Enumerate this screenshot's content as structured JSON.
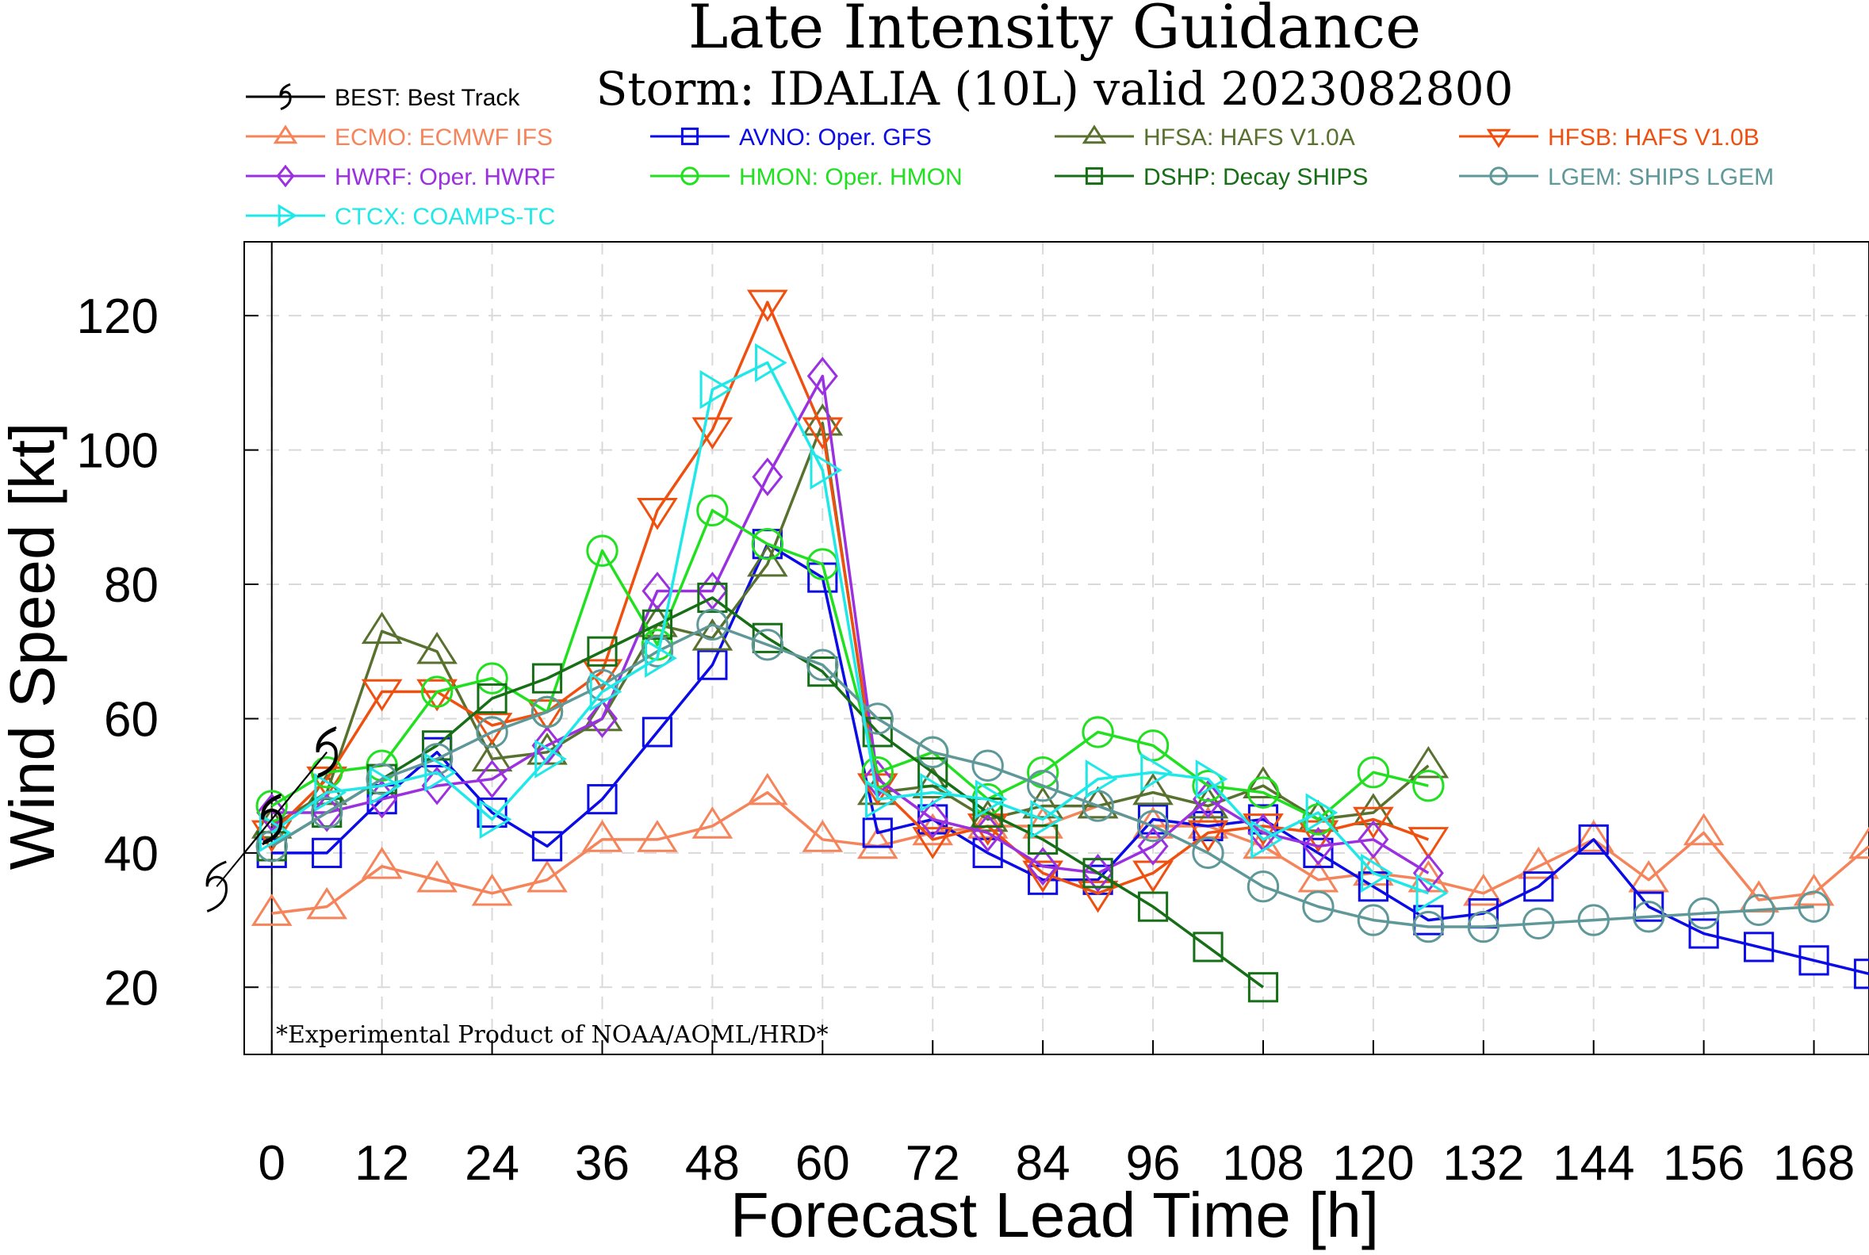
{
  "chart_data": {
    "type": "line",
    "title": "Late Intensity Guidance",
    "subtitle": "Storm: IDALIA (10L) valid 2023082800",
    "xlabel": "Forecast Lead Time [h]",
    "ylabel": "Wind Speed [kt]",
    "xlim": [
      -3,
      174
    ],
    "ylim": [
      10,
      131
    ],
    "xticks": [
      0,
      12,
      24,
      36,
      48,
      60,
      72,
      84,
      96,
      108,
      120,
      132,
      144,
      156,
      168
    ],
    "yticks": [
      20,
      40,
      60,
      80,
      100,
      120
    ],
    "xtick_labels": [
      "0",
      "12",
      "24",
      "36",
      "48",
      "60",
      "72",
      "84",
      "96",
      "108",
      "120",
      "132",
      "144",
      "156",
      "168"
    ],
    "ytick_labels": [
      "20",
      "40",
      "60",
      "80",
      "100",
      "120"
    ],
    "grid": true,
    "legend_placement": "top",
    "annotation": "*Experimental Product of NOAA/AOML/HRD*",
    "series": [
      {
        "name": "BEST: Best Track",
        "color": "#000000",
        "marker": "hurricane",
        "x": [
          -6,
          0,
          6
        ],
        "y": [
          35,
          45,
          55
        ]
      },
      {
        "name": "ECMO: ECMWF IFS",
        "color": "#f5845a",
        "marker": "triangle-up",
        "x": [
          0,
          6,
          12,
          18,
          24,
          30,
          36,
          42,
          48,
          54,
          60,
          66,
          72,
          78,
          84,
          90,
          96,
          102,
          108,
          114,
          120,
          126,
          132,
          138,
          144,
          150,
          156,
          162,
          168,
          174
        ],
        "y": [
          31,
          32,
          38,
          36,
          34,
          36,
          42,
          42,
          44,
          49,
          42,
          41,
          43,
          44,
          44,
          47,
          44,
          44,
          41,
          36,
          37,
          36,
          34,
          38,
          42,
          36,
          43,
          33,
          34,
          41
        ]
      },
      {
        "name": "AVNO: Oper. GFS",
        "color": "#0b0be8",
        "marker": "square",
        "x": [
          0,
          6,
          12,
          18,
          24,
          30,
          36,
          42,
          48,
          54,
          60,
          66,
          72,
          78,
          84,
          90,
          96,
          102,
          108,
          114,
          120,
          126,
          132,
          138,
          144,
          150,
          156,
          162,
          168,
          174
        ],
        "y": [
          40,
          40,
          48,
          55,
          46,
          41,
          48,
          58,
          68,
          86,
          81,
          43,
          45,
          40,
          36,
          36,
          45,
          44,
          45,
          40,
          35,
          30,
          31,
          35,
          42,
          32,
          28,
          26,
          24,
          22
        ]
      },
      {
        "name": "HFSA: HAFS V1.0A",
        "color": "#59712f",
        "marker": "triangle-up",
        "x": [
          0,
          6,
          12,
          18,
          24,
          30,
          36,
          42,
          48,
          54,
          60,
          66,
          72,
          78,
          84,
          90,
          96,
          102,
          108,
          114,
          120,
          126
        ],
        "y": [
          44,
          49,
          73,
          70,
          54,
          55,
          60,
          74,
          72,
          83,
          104,
          49,
          50,
          45,
          47,
          47,
          49,
          47,
          50,
          45,
          46,
          53
        ]
      },
      {
        "name": "HFSB: HAFS V1.0B",
        "color": "#f0500f",
        "marker": "triangle-down",
        "x": [
          0,
          6,
          12,
          18,
          24,
          30,
          36,
          42,
          48,
          54,
          60,
          66,
          72,
          78,
          84,
          90,
          96,
          102,
          108,
          114,
          120,
          126
        ],
        "y": [
          43,
          51,
          64,
          64,
          59,
          61,
          67,
          91,
          103,
          122,
          103,
          50,
          42,
          44,
          37,
          34,
          37,
          43,
          44,
          43,
          45,
          42
        ]
      },
      {
        "name": "HWRF: Oper. HWRF",
        "color": "#9b30e0",
        "marker": "diamond",
        "x": [
          0,
          6,
          12,
          18,
          24,
          30,
          36,
          42,
          48,
          54,
          60,
          66,
          72,
          78,
          84,
          90,
          96,
          102,
          108,
          114,
          120,
          126
        ],
        "y": [
          46,
          46,
          48,
          50,
          51,
          56,
          60,
          79,
          79,
          96,
          111,
          51,
          45,
          43,
          38,
          37,
          41,
          48,
          43,
          41,
          42,
          37
        ]
      },
      {
        "name": "HMON: Oper. HMON",
        "color": "#20e020",
        "marker": "circle",
        "x": [
          0,
          6,
          12,
          18,
          24,
          30,
          36,
          42,
          48,
          54,
          60,
          66,
          72,
          78,
          84,
          90,
          96,
          102,
          108,
          114,
          120,
          126
        ],
        "y": [
          47,
          52,
          53,
          64,
          66,
          61,
          85,
          71,
          91,
          86,
          83,
          52,
          55,
          48,
          52,
          58,
          56,
          50,
          49,
          45,
          52,
          50
        ]
      },
      {
        "name": "DSHP: Decay SHIPS",
        "color": "#166e16",
        "marker": "square",
        "x": [
          0,
          6,
          12,
          18,
          24,
          30,
          36,
          42,
          48,
          54,
          60,
          66,
          72,
          78,
          84,
          90,
          96,
          102,
          108
        ],
        "y": [
          41,
          46,
          51,
          56,
          63,
          66,
          70,
          74,
          78,
          72,
          67,
          58,
          52,
          46,
          42,
          37,
          32,
          26,
          20
        ]
      },
      {
        "name": "LGEM: SHIPS LGEM",
        "color": "#5f9898",
        "marker": "circle",
        "x": [
          0,
          6,
          12,
          18,
          24,
          30,
          36,
          42,
          48,
          54,
          60,
          66,
          72,
          78,
          84,
          90,
          96,
          102,
          108,
          114,
          120,
          126,
          132,
          138,
          144,
          150,
          156,
          162,
          168
        ],
        "y": [
          41,
          46,
          51,
          54,
          58,
          61,
          65,
          70,
          74,
          71,
          68,
          60,
          55,
          53,
          50,
          47,
          44,
          40,
          35,
          32,
          30,
          29,
          29,
          29.5,
          30,
          30.5,
          31,
          31.5,
          32
        ]
      },
      {
        "name": "CTCX: COAMPS-TC",
        "color": "#1fe8e8",
        "marker": "triangle-right",
        "x": [
          0,
          6,
          12,
          18,
          24,
          30,
          36,
          42,
          48,
          54,
          60,
          66,
          72,
          78,
          84,
          90,
          96,
          102,
          108,
          114,
          120,
          126
        ],
        "y": [
          43,
          49,
          50,
          52,
          45,
          54,
          64,
          69,
          109,
          113,
          97,
          48,
          49,
          48,
          45,
          51,
          52,
          51,
          42,
          46,
          37,
          34
        ]
      }
    ]
  }
}
